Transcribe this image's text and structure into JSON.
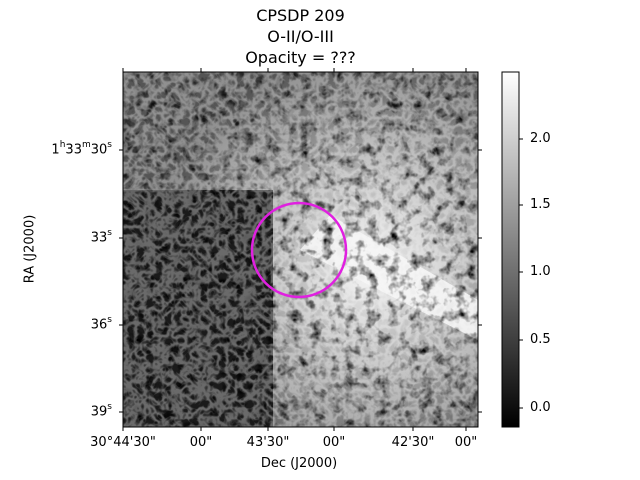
{
  "figure": {
    "title_lines": [
      "CPSDP 209",
      "O-II/O-III",
      "Opacity = ???"
    ],
    "xlabel": "Dec (J2000)",
    "ylabel": "RA (J2000)",
    "xticks": [
      "30°44'30\"",
      "00\"",
      "43'30\"",
      "00\"",
      "42'30\"",
      "00\""
    ],
    "yticks": [
      {
        "main": "1",
        "sup1": "h",
        "mid": "33",
        "sup2": "m",
        "end": "30",
        "sup3": "s"
      },
      {
        "main": "33",
        "sup3": "s"
      },
      {
        "main": "36",
        "sup3": "s"
      },
      {
        "main": "39",
        "sup3": "s"
      }
    ],
    "colorbar": {
      "ticks": [
        "2.0",
        "1.5",
        "1.0",
        "0.5",
        "0.0"
      ],
      "range": [
        -0.15,
        2.45
      ],
      "colormap": "gray"
    },
    "marker": {
      "shape": "circle",
      "color": "#e020e0"
    },
    "image_description_colors": {
      "dark": "#000000",
      "light": "#ffffff"
    }
  }
}
